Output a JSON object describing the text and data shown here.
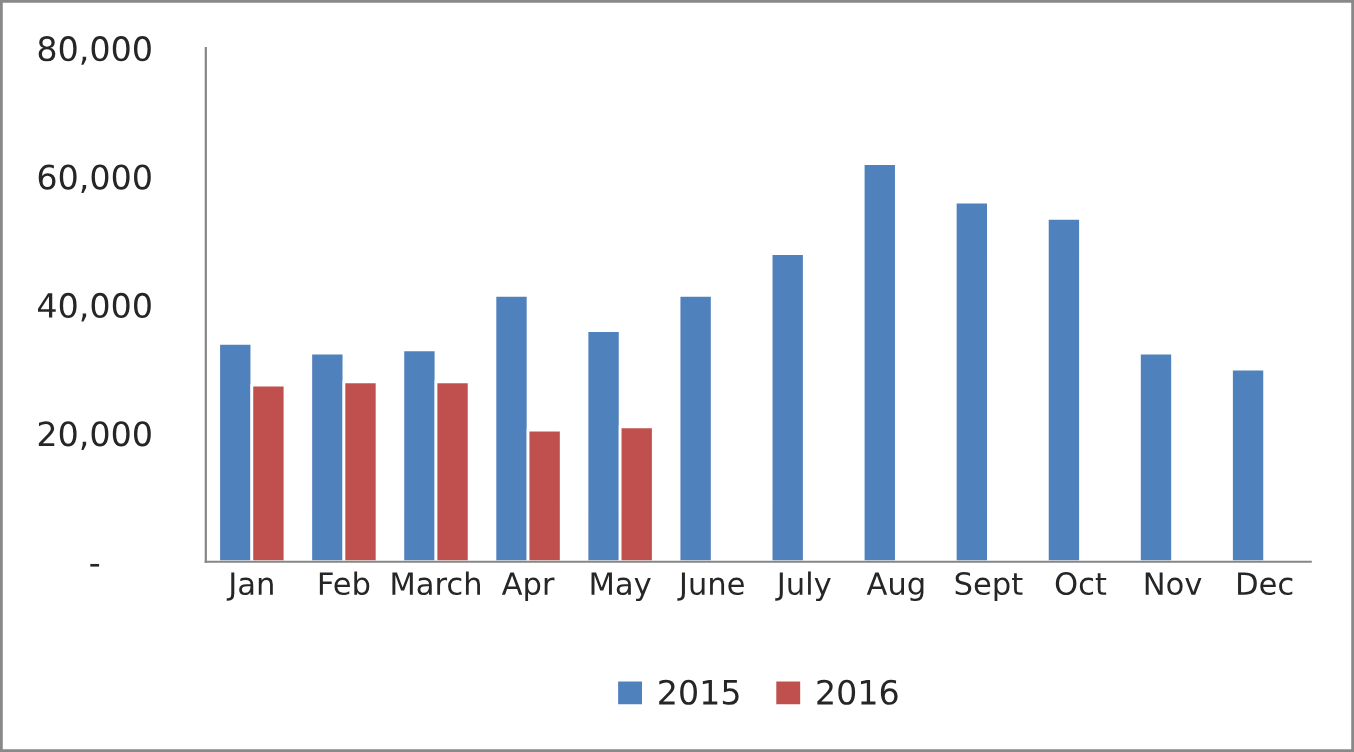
{
  "chart_data": {
    "type": "bar",
    "categories": [
      "Jan",
      "Feb",
      "March",
      "Apr",
      "May",
      "June",
      "July",
      "Aug",
      "Sept",
      "Oct",
      "Nov",
      "Dec"
    ],
    "series": [
      {
        "name": "2015",
        "color": "#4f81bd",
        "values": [
          34000,
          32500,
          33000,
          41500,
          36000,
          41500,
          48000,
          62000,
          56000,
          53500,
          32500,
          30000
        ]
      },
      {
        "name": "2016",
        "color": "#c0504d",
        "values": [
          27500,
          28000,
          28000,
          20500,
          21000,
          null,
          null,
          null,
          null,
          null,
          null,
          null
        ]
      }
    ],
    "ylim": [
      0,
      80000
    ],
    "yticks": [
      {
        "value": 0,
        "label": "-"
      },
      {
        "value": 20000,
        "label": "20,000"
      },
      {
        "value": 40000,
        "label": "40,000"
      },
      {
        "value": 60000,
        "label": "60,000"
      },
      {
        "value": 80000,
        "label": "80,000"
      }
    ],
    "grid": false,
    "legend": "bottom"
  }
}
